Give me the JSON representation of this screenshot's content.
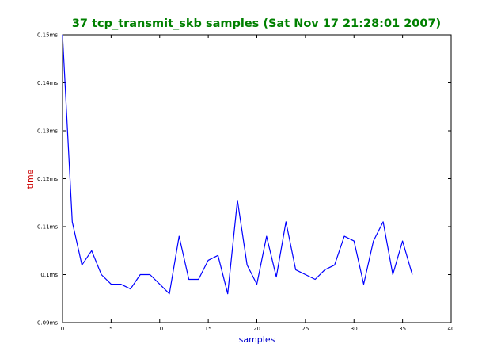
{
  "chart_data": {
    "type": "line",
    "title": "37 tcp_transmit_skb samples (Sat Nov 17 21:28:01 2007)",
    "xlabel": "samples",
    "ylabel": "time",
    "xlim": [
      0,
      40
    ],
    "ylim": [
      0.09,
      0.15
    ],
    "x_ticks": [
      0,
      5,
      10,
      15,
      20,
      25,
      30,
      35,
      40
    ],
    "x_tick_labels": [
      "0",
      "5",
      "10",
      "15",
      "20",
      "25",
      "30",
      "35",
      "40"
    ],
    "y_ticks": [
      0.09,
      0.1,
      0.11,
      0.12,
      0.13,
      0.14,
      0.15
    ],
    "y_tick_labels": [
      "0.09ms",
      "0.1ms",
      "0.11ms",
      "0.12ms",
      "0.13ms",
      "0.14ms",
      "0.15ms"
    ],
    "grid": false,
    "colors": {
      "title": "#008000",
      "xlabel": "#0000cc",
      "ylabel": "#cc0000",
      "line": "#0000ff",
      "axes": "#000000"
    },
    "series": [
      {
        "x": [
          0,
          1,
          2,
          3,
          4,
          5,
          6,
          7,
          8,
          9,
          10,
          11,
          12,
          13,
          14,
          15,
          16,
          17,
          18,
          19,
          20,
          21,
          22,
          23,
          24,
          25,
          26,
          27,
          28,
          29,
          30,
          31,
          32,
          33,
          34,
          35,
          36
        ],
        "values": [
          0.15,
          0.111,
          0.102,
          0.105,
          0.1,
          0.098,
          0.098,
          0.097,
          0.1,
          0.1,
          0.098,
          0.096,
          0.108,
          0.099,
          0.099,
          0.103,
          0.104,
          0.096,
          0.1155,
          0.102,
          0.098,
          0.108,
          0.0995,
          0.111,
          0.101,
          0.1,
          0.099,
          0.101,
          0.102,
          0.108,
          0.107,
          0.098,
          0.107,
          0.111,
          0.1,
          0.107,
          0.1
        ]
      }
    ]
  }
}
